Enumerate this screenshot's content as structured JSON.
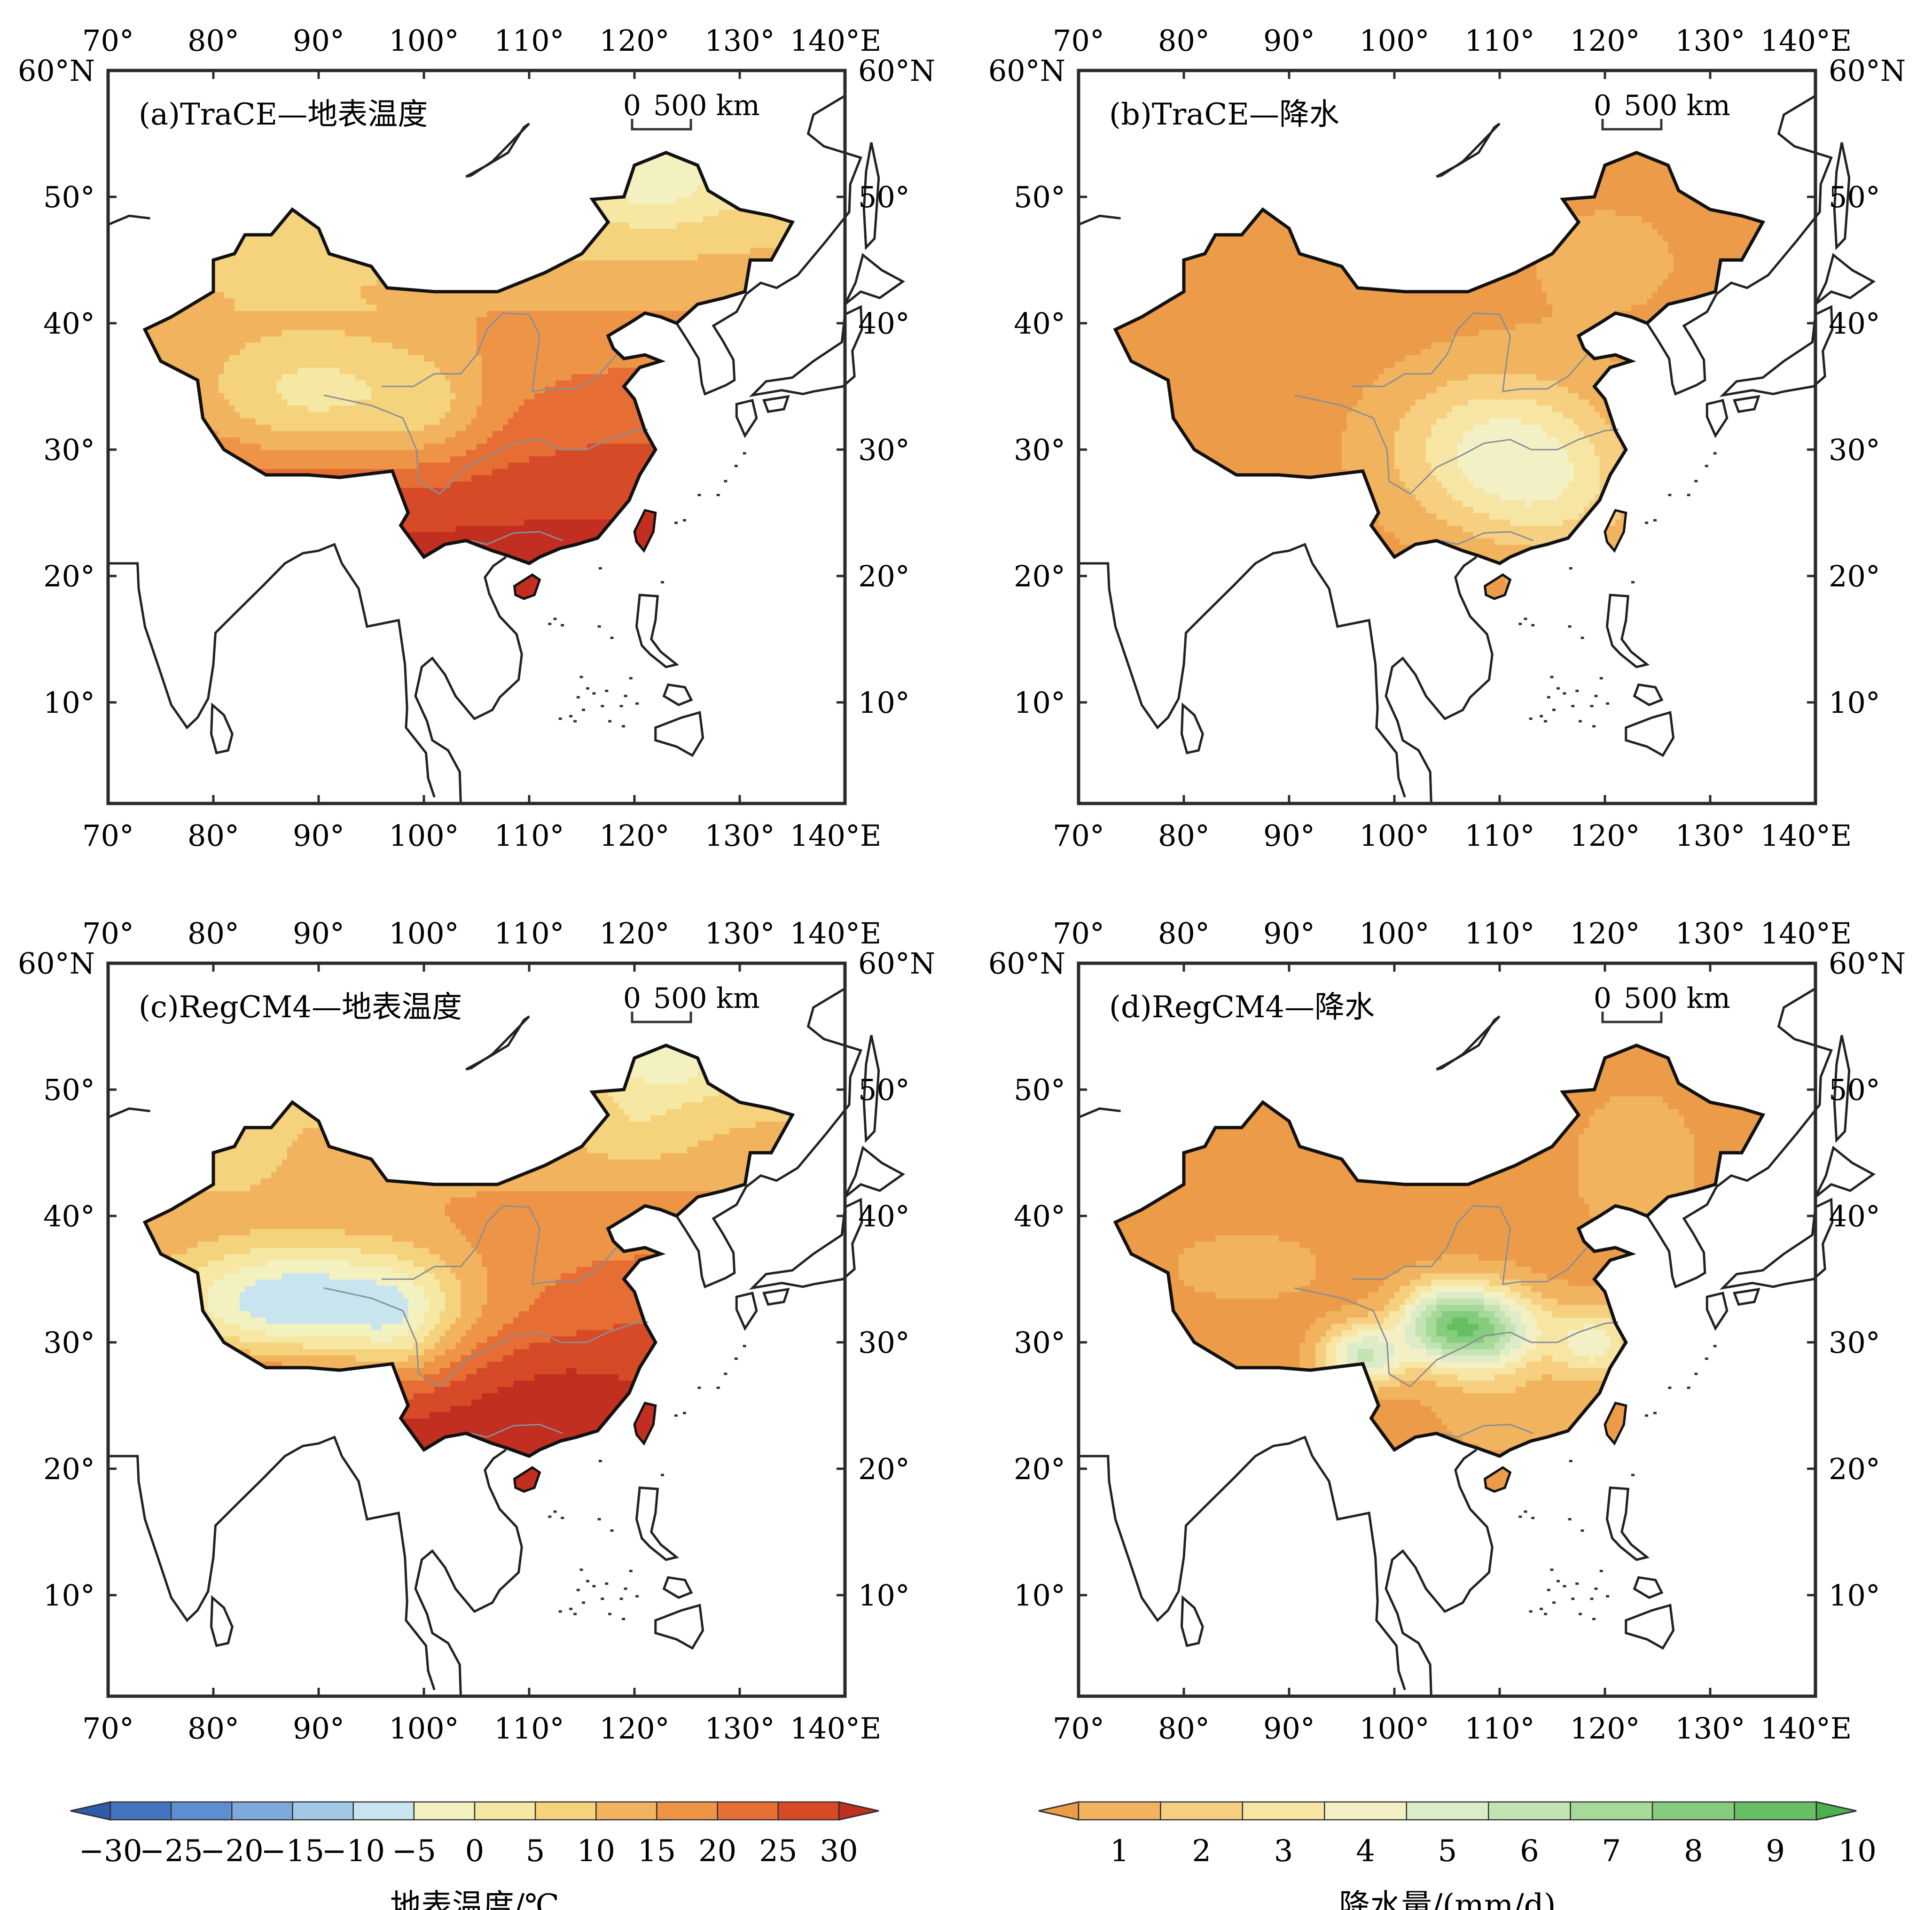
{
  "panels": [
    {
      "id": "a",
      "title": "(a)TraCE—地表温度",
      "variable": "temperature"
    },
    {
      "id": "b",
      "title": "(b)TraCE—降水",
      "variable": "precipitation"
    },
    {
      "id": "c",
      "title": "(c)RegCM4—地表温度",
      "variable": "temperature"
    },
    {
      "id": "d",
      "title": "(d)RegCM4—降水",
      "variable": "precipitation"
    }
  ],
  "axes": {
    "x_ticks": [
      "70°",
      "80°",
      "90°",
      "100°",
      "110°",
      "120°",
      "130°",
      "140°E"
    ],
    "y_ticks_left": [
      "60°N",
      "50°",
      "40°",
      "30°",
      "20°",
      "10°"
    ],
    "y_ticks_right": [
      "60°N",
      "50°",
      "40°",
      "30°",
      "20°",
      "10°"
    ],
    "lon_range": [
      70,
      140
    ],
    "lat_range": [
      2,
      60
    ]
  },
  "scale_bar": {
    "zero": "0",
    "label": "500 km"
  },
  "legends": {
    "temperature": {
      "title": "地表温度/℃",
      "ticks": [
        "−30",
        "−25",
        "−20",
        "−15",
        "−10",
        "−5",
        "0",
        "5",
        "10",
        "15",
        "20",
        "25",
        "30"
      ],
      "colors": [
        "#2f5aa8",
        "#4274c0",
        "#5d8ed0",
        "#7ea9dc",
        "#a2c8e6",
        "#c7e4ef",
        "#f4f1c0",
        "#f6e7a2",
        "#f5d37d",
        "#f2b35e",
        "#ee9446",
        "#e66d33",
        "#d74a27",
        "#c22e1f"
      ]
    },
    "precipitation": {
      "title": "降水量/(mm/d)",
      "ticks": [
        "1",
        "2",
        "3",
        "4",
        "5",
        "6",
        "7",
        "8",
        "9",
        "10"
      ],
      "colors": [
        "#ec9c48",
        "#f2b35e",
        "#f6cf80",
        "#f7e6a3",
        "#f4f0c5",
        "#dcecc8",
        "#c3e3b3",
        "#a6d99a",
        "#86cc7e",
        "#66bf63",
        "#4cb14d"
      ]
    }
  }
}
